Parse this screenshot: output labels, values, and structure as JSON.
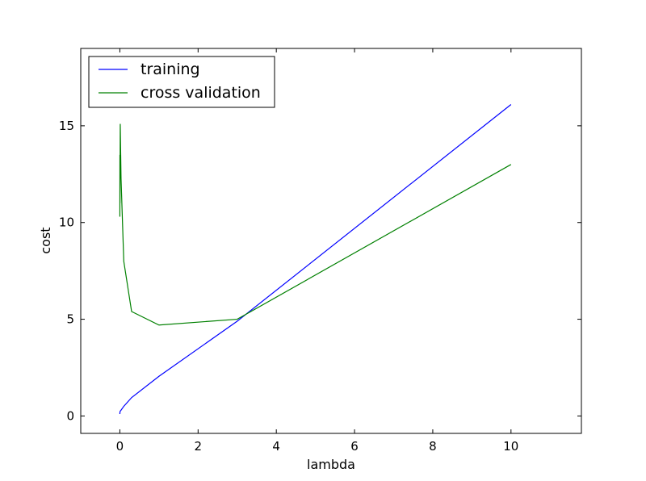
{
  "chart_data": {
    "type": "line",
    "xlabel": "lambda",
    "ylabel": "cost",
    "xlim": [
      -1,
      11.8
    ],
    "ylim": [
      -0.9,
      19
    ],
    "xticks": [
      0,
      2,
      4,
      6,
      8,
      10
    ],
    "yticks": [
      0,
      5,
      10,
      15
    ],
    "xtick_labels": [
      "0",
      "2",
      "4",
      "6",
      "8",
      "10"
    ],
    "ytick_labels": [
      "0",
      "5",
      "10",
      "15"
    ],
    "grid": false,
    "legend_position": "top-left",
    "series": [
      {
        "name": "training",
        "color": "#0000ff",
        "x": [
          0,
          0.001,
          0.003,
          0.01,
          0.03,
          0.1,
          0.3,
          1,
          3,
          10
        ],
        "y": [
          0.1,
          0.15,
          0.2,
          0.25,
          0.3,
          0.5,
          0.95,
          2.05,
          4.9,
          16.1
        ]
      },
      {
        "name": "cross validation",
        "color": "#008000",
        "x": [
          0,
          0.001,
          0.003,
          0.01,
          0.03,
          0.1,
          0.3,
          1,
          3,
          10
        ],
        "y": [
          10.3,
          13.5,
          11.0,
          15.1,
          12.3,
          8.0,
          5.4,
          4.7,
          5.0,
          13.0
        ]
      }
    ]
  }
}
